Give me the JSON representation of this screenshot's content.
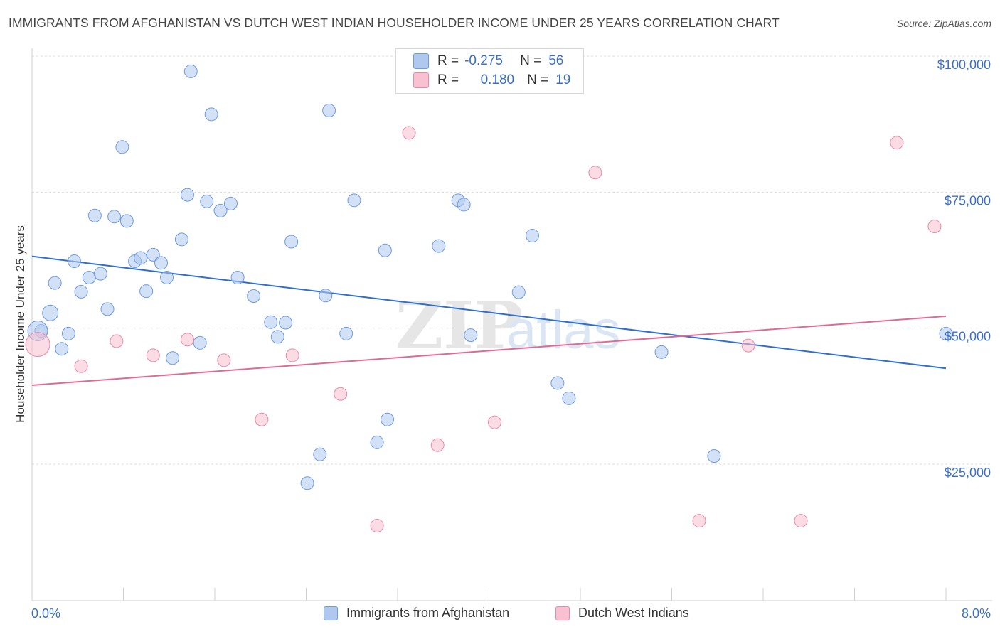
{
  "title": "IMMIGRANTS FROM AFGHANISTAN VS DUTCH WEST INDIAN HOUSEHOLDER INCOME UNDER 25 YEARS CORRELATION CHART",
  "source": "Source: ZipAtlas.com",
  "watermark": "ZIPatlas",
  "legend": {
    "r_label": "R =",
    "n_label": "N =",
    "rows": [
      {
        "r": "-0.275",
        "n": "56",
        "color": "#aec8f0",
        "border": "#6f9be0"
      },
      {
        "r": "0.180",
        "n": "19",
        "color": "#f8c0d0",
        "border": "#e88aa8"
      }
    ]
  },
  "bottom_legend": [
    {
      "label": "Immigrants from Afghanistan",
      "color": "#aec8f0",
      "border": "#6f9be0"
    },
    {
      "label": "Dutch West Indians",
      "color": "#f8c0d0",
      "border": "#e88aa8"
    }
  ],
  "chart_data": {
    "type": "scatter",
    "title": "IMMIGRANTS FROM AFGHANISTAN VS DUTCH WEST INDIAN HOUSEHOLDER INCOME UNDER 25 YEARS CORRELATION CHART",
    "xlabel": "",
    "ylabel": "Householder Income Under 25 years",
    "xlim": [
      0,
      8
    ],
    "ylim": [
      0,
      105000
    ],
    "x_tick_labels": [
      "0.0%",
      "8.0%"
    ],
    "y_ticks": [
      25000,
      50000,
      75000,
      100000
    ],
    "y_tick_labels": [
      "$25,000",
      "$50,000",
      "$75,000",
      "$100,000"
    ],
    "grid": true,
    "series": [
      {
        "name": "Immigrants from Afghanistan",
        "color": "#6f9be0",
        "fill": "#aec8f0",
        "trend": [
          [
            0,
            63200
          ],
          [
            8,
            42600
          ]
        ],
        "points": [
          [
            0.08,
            49500
          ],
          [
            0.16,
            52800
          ],
          [
            0.2,
            58300
          ],
          [
            0.26,
            46200
          ],
          [
            0.32,
            49000
          ],
          [
            0.37,
            62300
          ],
          [
            0.43,
            56700
          ],
          [
            0.5,
            59300
          ],
          [
            0.55,
            70700
          ],
          [
            0.6,
            60000
          ],
          [
            0.66,
            53500
          ],
          [
            0.72,
            70500
          ],
          [
            0.79,
            83300
          ],
          [
            0.83,
            69700
          ],
          [
            0.9,
            62300
          ],
          [
            0.95,
            62900
          ],
          [
            1.0,
            56800
          ],
          [
            1.06,
            63500
          ],
          [
            1.13,
            62000
          ],
          [
            1.18,
            59300
          ],
          [
            1.23,
            44500
          ],
          [
            1.31,
            66300
          ],
          [
            1.36,
            74500
          ],
          [
            1.39,
            97200
          ],
          [
            1.47,
            47300
          ],
          [
            1.53,
            73300
          ],
          [
            1.57,
            89300
          ],
          [
            1.65,
            71600
          ],
          [
            1.74,
            72900
          ],
          [
            1.8,
            59300
          ],
          [
            1.94,
            55900
          ],
          [
            2.09,
            51100
          ],
          [
            2.15,
            48400
          ],
          [
            2.22,
            51000
          ],
          [
            2.27,
            65900
          ],
          [
            2.41,
            21500
          ],
          [
            2.52,
            26800
          ],
          [
            2.57,
            56000
          ],
          [
            2.6,
            90000
          ],
          [
            2.75,
            49000
          ],
          [
            2.82,
            73500
          ],
          [
            3.02,
            29000
          ],
          [
            3.09,
            64300
          ],
          [
            3.11,
            33200
          ],
          [
            3.56,
            65100
          ],
          [
            3.73,
            73500
          ],
          [
            3.78,
            72700
          ],
          [
            3.84,
            48700
          ],
          [
            4.26,
            56600
          ],
          [
            4.38,
            67000
          ],
          [
            4.6,
            39900
          ],
          [
            4.7,
            37100
          ],
          [
            5.51,
            45600
          ],
          [
            5.97,
            26500
          ],
          [
            8.0,
            49000
          ],
          [
            0.05,
            49500
          ]
        ]
      },
      {
        "name": "Dutch West Indians",
        "color": "#e88aa8",
        "fill": "#f8c0d0",
        "trend": [
          [
            0,
            39500
          ],
          [
            8,
            52200
          ]
        ],
        "points": [
          [
            0.05,
            47000
          ],
          [
            0.43,
            43000
          ],
          [
            0.74,
            47600
          ],
          [
            1.06,
            45000
          ],
          [
            1.36,
            47900
          ],
          [
            1.68,
            44100
          ],
          [
            2.01,
            33200
          ],
          [
            2.28,
            45000
          ],
          [
            2.7,
            37900
          ],
          [
            3.02,
            13700
          ],
          [
            3.3,
            85900
          ],
          [
            3.55,
            28500
          ],
          [
            4.05,
            32700
          ],
          [
            4.93,
            78600
          ],
          [
            5.84,
            14600
          ],
          [
            6.27,
            46800
          ],
          [
            6.73,
            14600
          ],
          [
            7.57,
            84100
          ],
          [
            7.9,
            68700
          ]
        ]
      }
    ]
  }
}
